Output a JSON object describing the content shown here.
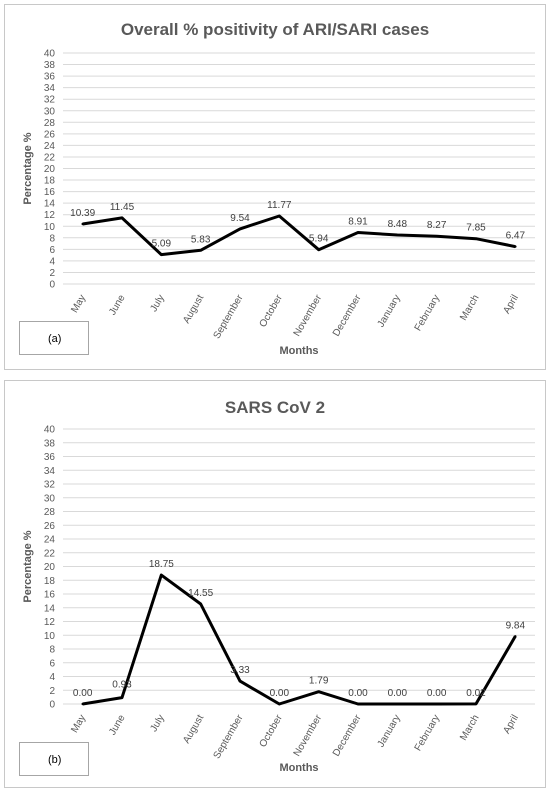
{
  "chart_data": [
    {
      "type": "line",
      "title": "Overall % positivity of ARI/SARI cases",
      "xlabel": "Months",
      "ylabel": "Percentage %",
      "panel_label": "(a)",
      "categories": [
        "May",
        "June",
        "July",
        "August",
        "September",
        "October",
        "November",
        "December",
        "January",
        "February",
        "March",
        "April"
      ],
      "values": [
        10.39,
        11.45,
        5.09,
        5.83,
        9.54,
        11.77,
        5.94,
        8.91,
        8.48,
        8.27,
        7.85,
        6.47
      ],
      "value_labels": [
        "10.39",
        "11.45",
        "5.09",
        "5.83",
        "9.54",
        "11.77",
        "5.94",
        "8.91",
        "8.48",
        "8.27",
        "7.85",
        "6.47"
      ],
      "ylim": [
        0,
        40
      ],
      "yticks": [
        "0",
        "2",
        "4",
        "6",
        "8",
        "10",
        "12",
        "14",
        "16",
        "18",
        "20",
        "22",
        "24",
        "26",
        "28",
        "30",
        "32",
        "34",
        "36",
        "38",
        "40"
      ],
      "grid": true,
      "line_color": "#000000",
      "grid_color": "#d9d9d9"
    },
    {
      "type": "line",
      "title": "SARS CoV 2",
      "xlabel": "Months",
      "ylabel": "Percentage %",
      "panel_label": "(b)",
      "categories": [
        "May",
        "June",
        "July",
        "August",
        "September",
        "October",
        "November",
        "December",
        "January",
        "February",
        "March",
        "April"
      ],
      "values": [
        0.0,
        0.93,
        18.75,
        14.55,
        3.33,
        0.0,
        1.79,
        0.0,
        0.0,
        0.0,
        0.02,
        9.84
      ],
      "value_labels": [
        "0.00",
        "0.93",
        "18.75",
        "14.55",
        "3.33",
        "0.00",
        "1.79",
        "0.00",
        "0.00",
        "0.00",
        "0.02",
        "9.84"
      ],
      "ylim": [
        0,
        40
      ],
      "yticks": [
        "0",
        "2",
        "4",
        "6",
        "8",
        "10",
        "12",
        "14",
        "16",
        "18",
        "20",
        "22",
        "24",
        "26",
        "28",
        "30",
        "32",
        "34",
        "36",
        "38",
        "40"
      ],
      "grid": true,
      "line_color": "#000000",
      "grid_color": "#d9d9d9"
    }
  ]
}
